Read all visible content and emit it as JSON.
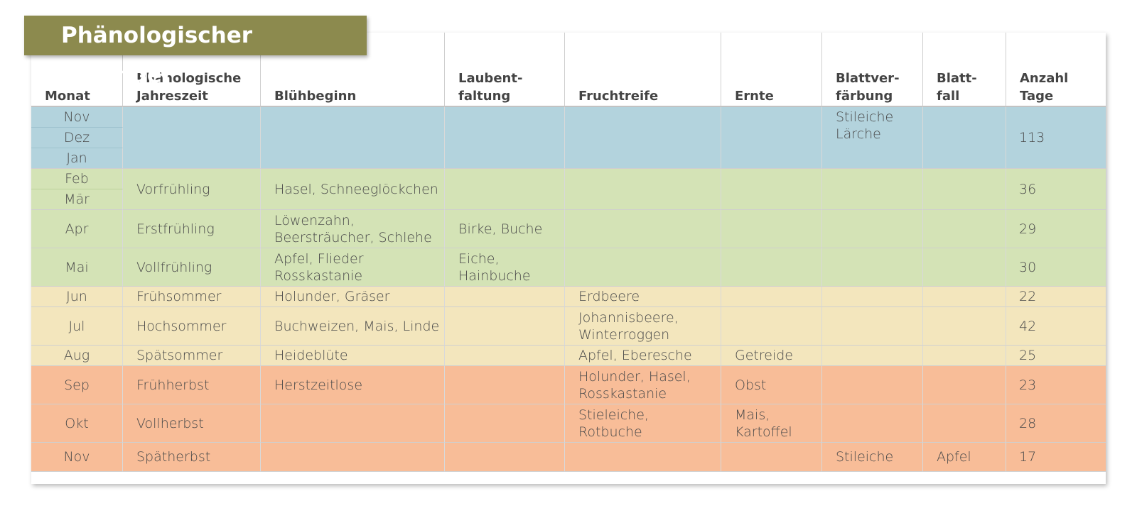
{
  "title": "Phänologischer Kalender",
  "headers": {
    "monat": "Monat",
    "jahreszeit": "Phänologische\nJahreszeit",
    "bluehbeginn": "Blühbeginn",
    "laubentfaltung": "Laubent-\nfaltung",
    "fruchtreife": "Fruchtreife",
    "ernte": "Ernte",
    "blattverfaerbung": "Blattver-\nfärbung",
    "blattfall": "Blatt-\nfall",
    "anzahl_tage": "Anzahl\nTage"
  },
  "season_colors": {
    "winter": "#b3d3dd",
    "spring": "#d4e3b6",
    "summer": "#f3e6bd",
    "autumn": "#f8bd98"
  },
  "rows": {
    "winter": {
      "months": [
        "Nov",
        "Dez",
        "Jan"
      ],
      "blattverfaerbung": "Stileiche\nLärche",
      "tage": "113"
    },
    "vorfruehling": {
      "months": [
        "Feb",
        "Mär"
      ],
      "jahreszeit": "Vorfrühling",
      "bluehbeginn": "Hasel, Schneeglöckchen",
      "tage": "36"
    },
    "erstfruehling": {
      "monat": "Apr",
      "jahreszeit": "Erstfrühling",
      "bluehbeginn": "Löwenzahn,\nBeersträucher, Schlehe",
      "laubentfaltung": "Birke, Buche",
      "tage": "29"
    },
    "vollfruehling": {
      "monat": "Mai",
      "jahreszeit": "Vollfrühling",
      "bluehbeginn": "Apfel, Flieder\nRosskastanie",
      "laubentfaltung": "Eiche,\nHainbuche",
      "tage": "30"
    },
    "fruehsommer": {
      "monat": "Jun",
      "jahreszeit": "Frühsommer",
      "bluehbeginn": "Holunder, Gräser",
      "fruchtreife": "Erdbeere",
      "tage": "22"
    },
    "hochsommer": {
      "monat": "Jul",
      "jahreszeit": "Hochsommer",
      "bluehbeginn": "Buchweizen, Mais, Linde",
      "fruchtreife": "Johannisbeere,\nWinterroggen",
      "tage": "42"
    },
    "spaetsommer": {
      "monat": "Aug",
      "jahreszeit": "Spätsommer",
      "bluehbeginn": "Heideblüte",
      "fruchtreife": "Apfel, Eberesche",
      "ernte": "Getreide",
      "tage": "25"
    },
    "fruehherbst": {
      "monat": "Sep",
      "jahreszeit": "Frühherbst",
      "bluehbeginn": "Herstzeitlose",
      "fruchtreife": "Holunder, Hasel,\nRosskastanie",
      "ernte": "Obst",
      "tage": "23"
    },
    "vollherbst": {
      "monat": "Okt",
      "jahreszeit": "Vollherbst",
      "fruchtreife": "Stieleiche,\nRotbuche",
      "ernte": "Mais,\nKartoffel",
      "tage": "28"
    },
    "spaetherbst": {
      "monat": "Nov",
      "jahreszeit": "Spätherbst",
      "blattverfaerbung": "Stileiche",
      "blattfall": "Apfel",
      "tage": "17"
    }
  }
}
